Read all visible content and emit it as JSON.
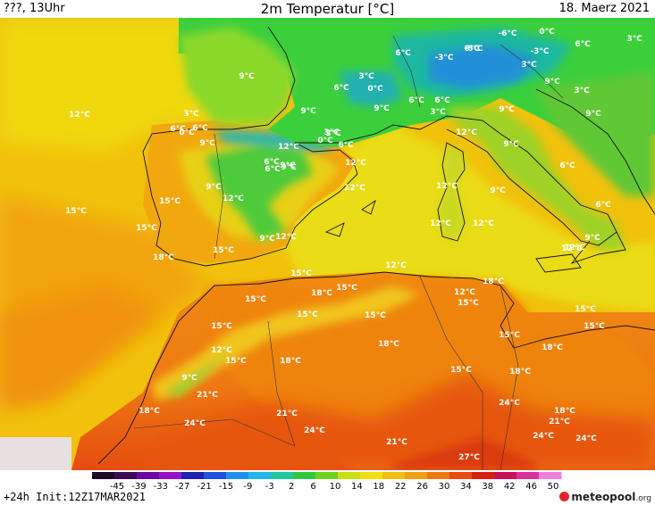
{
  "header": {
    "left": "???, 13Uhr",
    "title": "2m Temperatur [°C]",
    "date": "18. Maerz 2021"
  },
  "colors": {
    "sea_west": "#f1c10c",
    "land_warm": "#f08b12",
    "land_hot": "#ea5c10",
    "med_sea": "#eadc14",
    "cool_green": "#3cc93c",
    "cold_cyan": "#1fbd9f"
  },
  "scale": {
    "ticks": [
      "-45",
      "-39",
      "-33",
      "-27",
      "-21",
      "-15",
      "-9",
      "-3",
      "2",
      "6",
      "10",
      "14",
      "18",
      "22",
      "26",
      "30",
      "34",
      "38",
      "42",
      "46",
      "50"
    ],
    "colors": [
      "#1a0a26",
      "#3a0a55",
      "#6a0aa0",
      "#9a10c8",
      "#2020b0",
      "#2050e0",
      "#2090f0",
      "#20b8e8",
      "#20c8a0",
      "#30c840",
      "#70d020",
      "#c8e010",
      "#f0e010",
      "#f0c010",
      "#f0a010",
      "#f07810",
      "#e84c10",
      "#d82010",
      "#c8105a",
      "#d830a0",
      "#f080e0"
    ]
  },
  "labels": [
    {
      "t": "9°C"
    },
    {
      "t": "12°C"
    },
    {
      "t": "15°C"
    },
    {
      "t": "18°C"
    },
    {
      "t": "6°C"
    },
    {
      "t": "3°C"
    },
    {
      "t": "0°C"
    },
    {
      "t": "6°C"
    },
    {
      "t": "9°C"
    },
    {
      "t": "3°C"
    },
    {
      "t": "3°C"
    },
    {
      "t": "0°C"
    },
    {
      "t": "6°C"
    },
    {
      "t": "-3°C"
    },
    {
      "t": "-6°C"
    },
    {
      "t": "-6°C"
    },
    {
      "t": "0°C"
    },
    {
      "t": "-3°C"
    },
    {
      "t": "6°C"
    },
    {
      "t": "6°C"
    },
    {
      "t": "3°C"
    },
    {
      "t": "6°C"
    },
    {
      "t": "3°C"
    },
    {
      "t": "9°C"
    },
    {
      "t": "6°C"
    },
    {
      "t": "9°C"
    },
    {
      "t": "3°C"
    },
    {
      "t": "9°C"
    },
    {
      "t": "3°C"
    },
    {
      "t": "9°C"
    },
    {
      "t": "6°C"
    },
    {
      "t": "9°C"
    },
    {
      "t": "12°C"
    },
    {
      "t": "6°C"
    },
    {
      "t": "9°C"
    },
    {
      "t": "6°C"
    },
    {
      "t": "3°C"
    },
    {
      "t": "0°C"
    },
    {
      "t": "6°C"
    },
    {
      "t": "12°C"
    },
    {
      "t": "9°C"
    },
    {
      "t": "12°C"
    },
    {
      "t": "12°C"
    },
    {
      "t": "15°C"
    },
    {
      "t": "15°C"
    },
    {
      "t": "12°C"
    },
    {
      "t": "9°C"
    },
    {
      "t": "12°C"
    },
    {
      "t": "12°C"
    },
    {
      "t": "12°C"
    },
    {
      "t": "12°C"
    },
    {
      "t": "9°C"
    },
    {
      "t": "9°C"
    },
    {
      "t": "6°C"
    },
    {
      "t": "6°C"
    },
    {
      "t": "9°C"
    },
    {
      "t": "12°C"
    },
    {
      "t": "12°C"
    },
    {
      "t": "9°C"
    },
    {
      "t": "12°C"
    },
    {
      "t": "15°C"
    },
    {
      "t": "18°C"
    },
    {
      "t": "15°C"
    },
    {
      "t": "15°C"
    },
    {
      "t": "15°C"
    },
    {
      "t": "15°C"
    },
    {
      "t": "12°C"
    },
    {
      "t": "15°C"
    },
    {
      "t": "18°C"
    },
    {
      "t": "15°C"
    },
    {
      "t": "15°C"
    },
    {
      "t": "18°C"
    },
    {
      "t": "15°C"
    },
    {
      "t": "15°C"
    },
    {
      "t": "15°C"
    },
    {
      "t": "12°C"
    },
    {
      "t": "15°C"
    },
    {
      "t": "18°C"
    },
    {
      "t": "9°C"
    },
    {
      "t": "21°C"
    },
    {
      "t": "18°C"
    },
    {
      "t": "15°C"
    },
    {
      "t": "18°C"
    },
    {
      "t": "18°C"
    },
    {
      "t": "24°C"
    },
    {
      "t": "21°C"
    },
    {
      "t": "24°C"
    },
    {
      "t": "21°C"
    },
    {
      "t": "24°C"
    },
    {
      "t": "18°C"
    },
    {
      "t": "21°C"
    },
    {
      "t": "24°C"
    },
    {
      "t": "24°C"
    },
    {
      "t": "27°C"
    }
  ],
  "footer": {
    "init": "+24h Init:12Z17MAR2021",
    "logo_name": "meteopool",
    "logo_tld": ".org"
  }
}
